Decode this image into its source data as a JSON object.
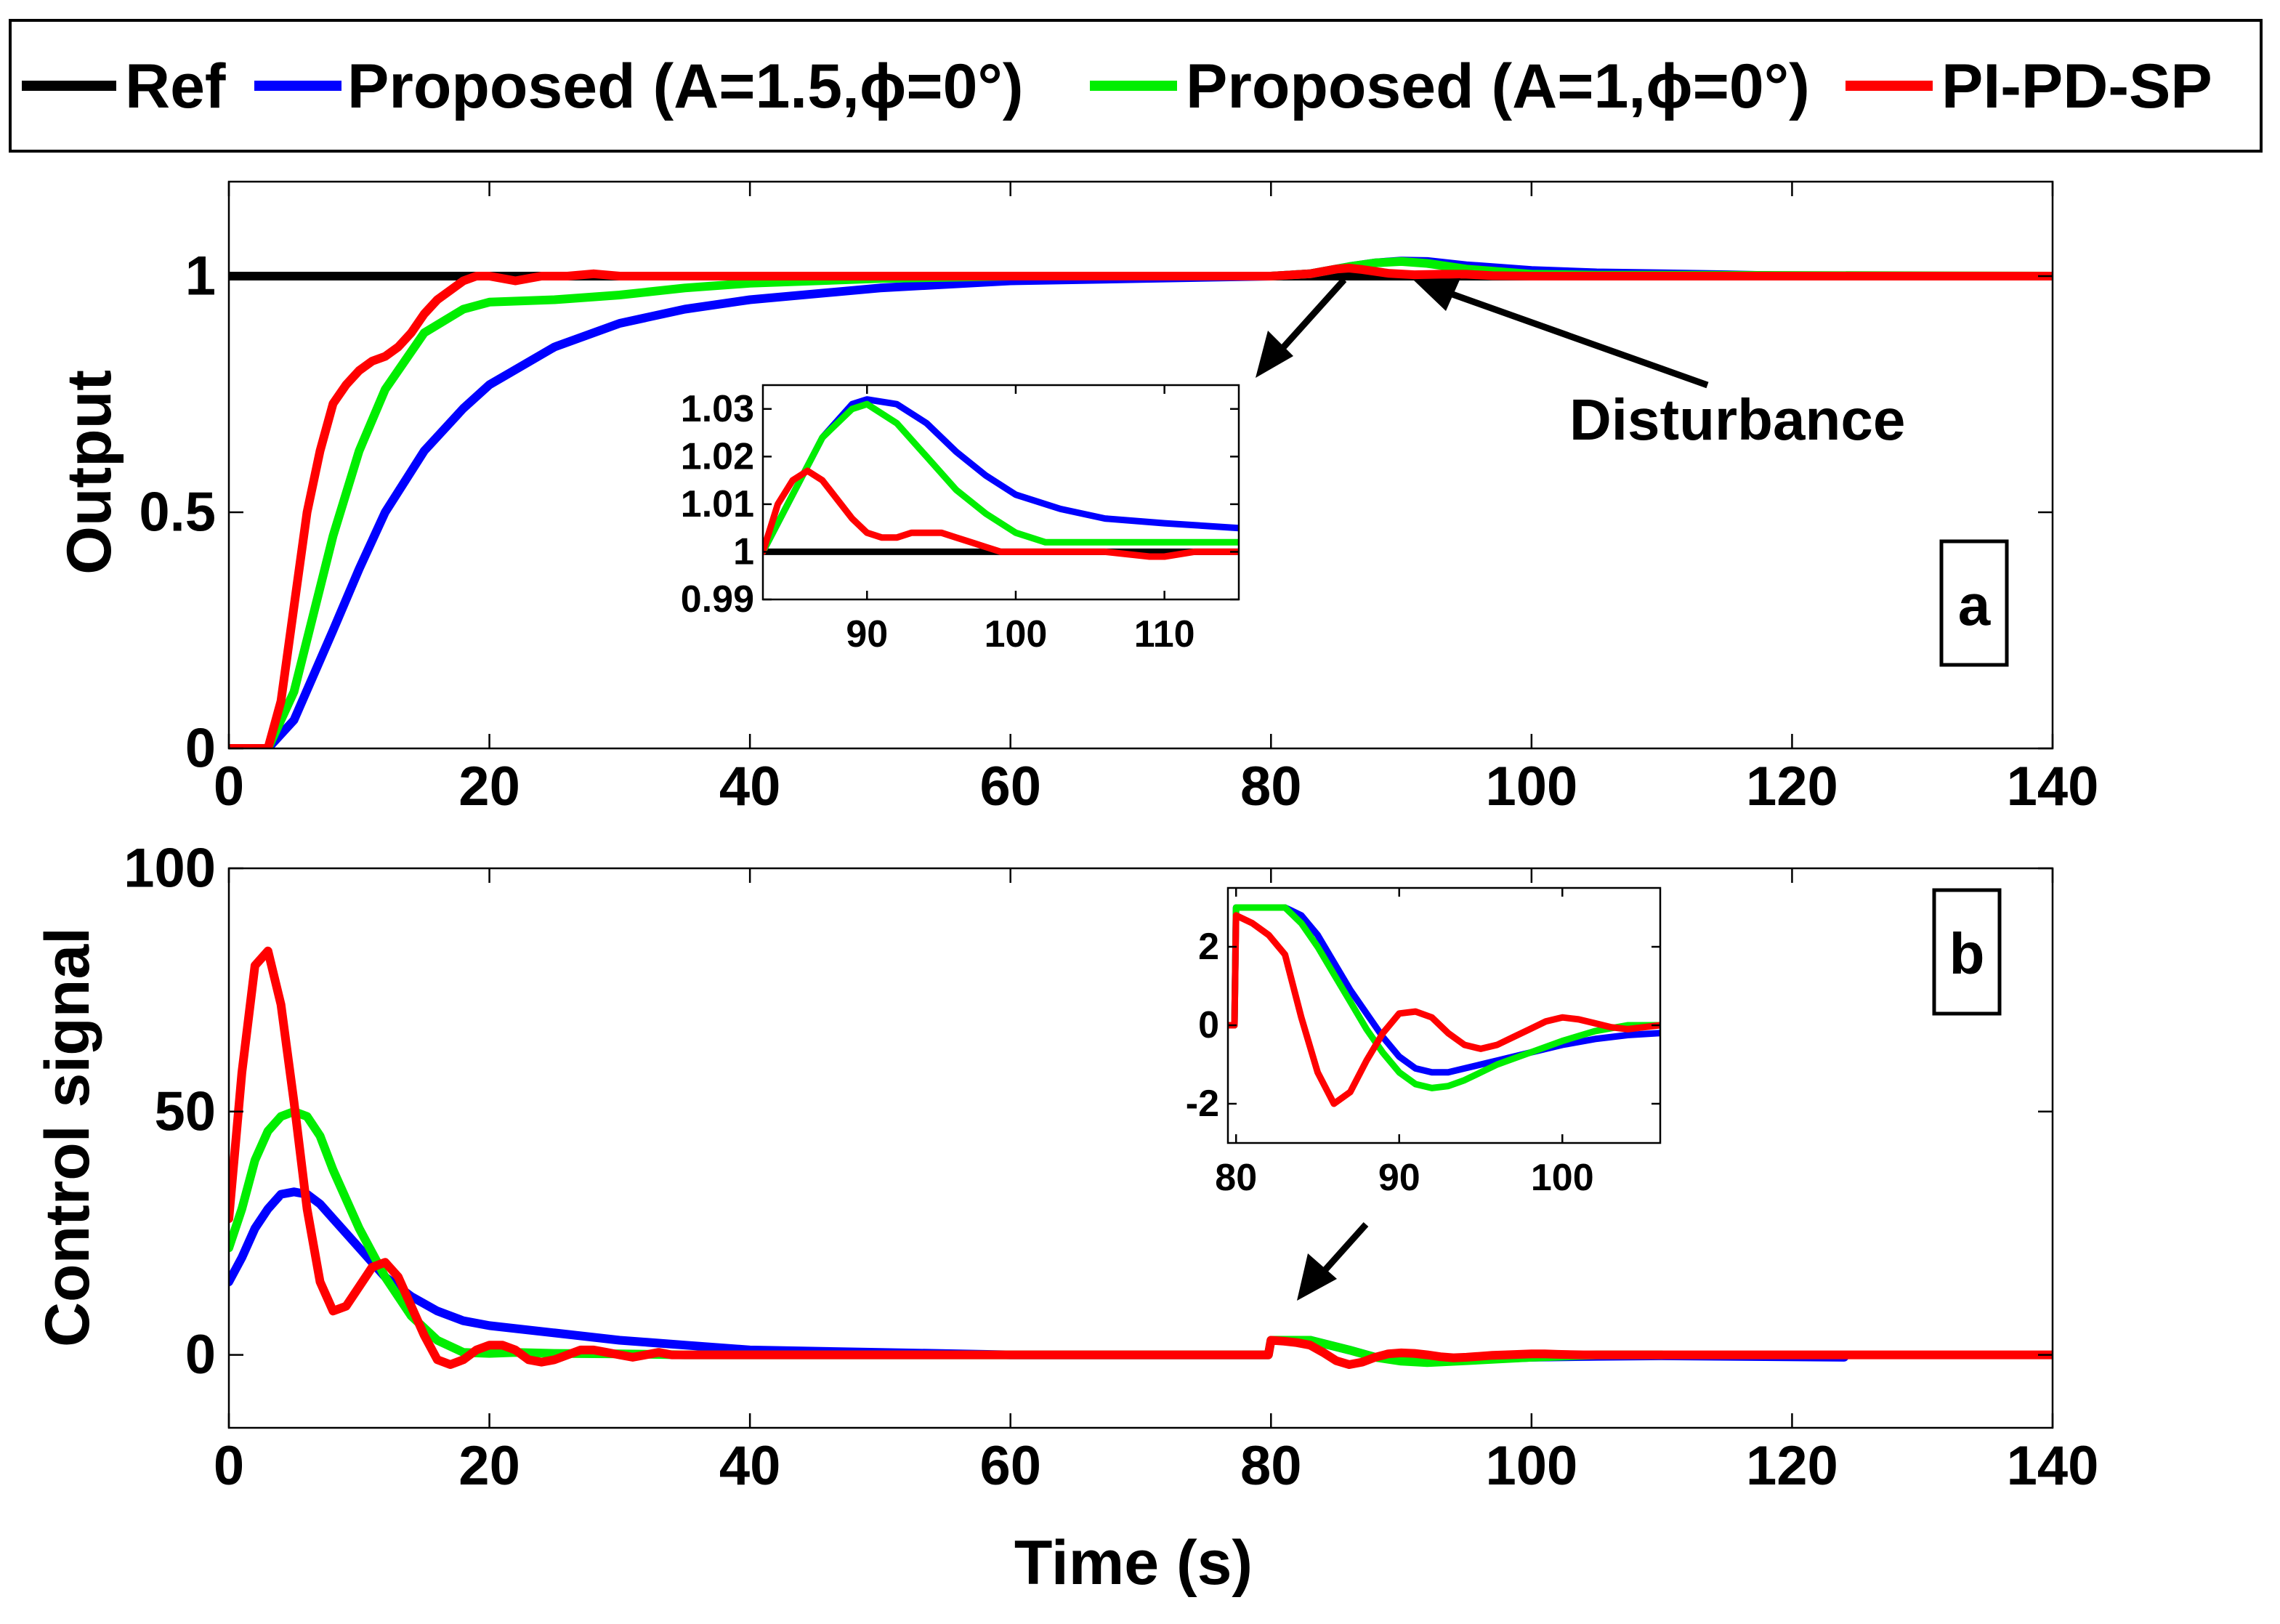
{
  "colors": {
    "ref": "#000000",
    "proposed_a15": "#0000ff",
    "proposed_a1": "#00ee00",
    "pipdsp": "#ff0000"
  },
  "legend": [
    {
      "key": "ref",
      "label": "Ref"
    },
    {
      "key": "proposed_a15",
      "label": "Proposed (A=1.5,ϕ=0°)"
    },
    {
      "key": "proposed_a1",
      "label": "Proposed (A=1,ϕ=0°)"
    },
    {
      "key": "pipdsp",
      "label": "PI-PD-SP"
    }
  ],
  "annotations": {
    "disturbance": "Disturbance",
    "panel_a": "a",
    "panel_b": "b"
  },
  "chart_data": [
    {
      "id": "output",
      "type": "line",
      "ylabel": "Output",
      "xlabel": "",
      "xlim": [
        0,
        140
      ],
      "ylim": [
        0,
        1.2
      ],
      "xticks": [
        0,
        20,
        40,
        60,
        80,
        100,
        120,
        140
      ],
      "yticks": [
        0,
        0.5,
        1
      ],
      "ytick_labels": [
        "0",
        "0.5",
        "1"
      ],
      "series": [
        {
          "key": "ref",
          "name": "Ref",
          "x": [
            0,
            140
          ],
          "y": [
            1,
            1
          ]
        },
        {
          "key": "proposed_a15",
          "name": "Proposed (A=1.5,ϕ=0°)",
          "x": [
            0,
            3,
            5,
            8,
            10,
            12,
            15,
            18,
            20,
            25,
            30,
            35,
            40,
            50,
            60,
            70,
            80,
            83,
            86,
            88,
            90,
            92,
            95,
            100,
            105,
            110,
            115,
            120,
            130,
            140
          ],
          "y": [
            0,
            0,
            0.06,
            0.25,
            0.38,
            0.5,
            0.63,
            0.72,
            0.77,
            0.85,
            0.9,
            0.93,
            0.95,
            0.975,
            0.99,
            0.995,
            1,
            1.005,
            1.02,
            1.028,
            1.032,
            1.031,
            1.022,
            1.012,
            1.007,
            1.005,
            1.003,
            1,
            1,
            1
          ]
        },
        {
          "key": "proposed_a1",
          "name": "Proposed (A=1,ϕ=0°)",
          "x": [
            0,
            3,
            5,
            8,
            10,
            12,
            15,
            18,
            20,
            25,
            30,
            35,
            40,
            50,
            60,
            80,
            83,
            86,
            88,
            90,
            92,
            95,
            100,
            105,
            110,
            140
          ],
          "y": [
            0,
            0,
            0.12,
            0.45,
            0.63,
            0.76,
            0.88,
            0.93,
            0.945,
            0.95,
            0.96,
            0.975,
            0.985,
            0.995,
            1,
            1,
            1.005,
            1.02,
            1.028,
            1.031,
            1.027,
            1.015,
            1.004,
            1.002,
            1.002,
            1
          ]
        },
        {
          "key": "pipdsp",
          "name": "PI-PD-SP",
          "x": [
            0,
            3,
            4,
            5,
            6,
            7,
            8,
            9,
            10,
            11,
            12,
            13,
            14,
            15,
            16,
            17,
            18,
            19,
            20,
            22,
            24,
            26,
            28,
            30,
            40,
            60,
            80,
            83,
            85,
            86,
            87,
            89,
            91,
            93,
            95,
            97,
            100,
            105,
            110,
            140
          ],
          "y": [
            0,
            0,
            0.1,
            0.3,
            0.5,
            0.63,
            0.73,
            0.77,
            0.8,
            0.82,
            0.83,
            0.85,
            0.88,
            0.92,
            0.95,
            0.97,
            0.99,
            1.0,
            1.0,
            0.99,
            1.0,
            1.0,
            1.005,
            1.0,
            1.0,
            1,
            1,
            1.005,
            1.015,
            1.017,
            1.014,
            1.006,
            1.003,
            1.004,
            1.004,
            1.001,
            1,
            1.0,
            1,
            1
          ]
        }
      ]
    },
    {
      "id": "output_inset",
      "type": "line",
      "xlim": [
        83,
        115
      ],
      "ylim": [
        0.99,
        1.035
      ],
      "xticks": [
        90,
        100,
        110
      ],
      "yticks": [
        0.99,
        1,
        1.01,
        1.02,
        1.03
      ],
      "ytick_labels": [
        "0.99",
        "1",
        "1.01",
        "1.02",
        "1.03"
      ],
      "series": [
        {
          "key": "ref",
          "name": "Ref",
          "x": [
            83,
            115
          ],
          "y": [
            1,
            1
          ]
        },
        {
          "key": "proposed_a15",
          "name": "Proposed (A=1.5,ϕ=0°)",
          "x": [
            83,
            85,
            87,
            89,
            90,
            92,
            94,
            96,
            98,
            100,
            103,
            106,
            110,
            115
          ],
          "y": [
            1,
            1.012,
            1.024,
            1.031,
            1.032,
            1.031,
            1.027,
            1.021,
            1.016,
            1.012,
            1.009,
            1.007,
            1.006,
            1.005
          ]
        },
        {
          "key": "proposed_a1",
          "name": "Proposed (A=1,ϕ=0°)",
          "x": [
            83,
            85,
            87,
            89,
            90,
            92,
            94,
            96,
            98,
            100,
            102,
            104,
            106,
            110,
            115
          ],
          "y": [
            1,
            1.012,
            1.024,
            1.03,
            1.031,
            1.027,
            1.02,
            1.013,
            1.008,
            1.004,
            1.002,
            1.002,
            1.002,
            1.002,
            1.002
          ]
        },
        {
          "key": "pipdsp",
          "name": "PI-PD-SP",
          "x": [
            83,
            84,
            85,
            86,
            87,
            88,
            89,
            90,
            91,
            92,
            93,
            94,
            95,
            96,
            97,
            98,
            99,
            100,
            103,
            106,
            109,
            110,
            112,
            115
          ],
          "y": [
            1,
            1.01,
            1.015,
            1.017,
            1.015,
            1.011,
            1.007,
            1.004,
            1.003,
            1.003,
            1.004,
            1.004,
            1.004,
            1.003,
            1.002,
            1.001,
            1.0,
            1.0,
            1.0,
            1.0,
            0.999,
            0.999,
            1.0,
            1.0
          ]
        }
      ]
    },
    {
      "id": "control",
      "type": "line",
      "ylabel": "Control signal",
      "xlabel": "Time (s)",
      "xlim": [
        0,
        140
      ],
      "ylim": [
        -15,
        100
      ],
      "xticks": [
        0,
        20,
        40,
        60,
        80,
        100,
        120,
        140
      ],
      "yticks": [
        0,
        50,
        100
      ],
      "ytick_labels": [
        "0",
        "50",
        "100"
      ],
      "series": [
        {
          "key": "proposed_a15",
          "name": "Proposed (A=1.5,ϕ=0°)",
          "x": [
            0,
            1,
            2,
            3,
            4,
            5,
            6,
            7,
            8,
            10,
            12,
            14,
            16,
            18,
            20,
            25,
            30,
            35,
            40,
            50,
            60,
            79.8,
            80,
            83,
            86,
            88,
            90,
            92,
            95,
            100,
            105,
            110,
            124
          ],
          "y": [
            15,
            20,
            26,
            30,
            33,
            33.5,
            33,
            31,
            28,
            22,
            16,
            12,
            9,
            7,
            6,
            4.5,
            3,
            2,
            1,
            0.5,
            0,
            0,
            3,
            3,
            1,
            -0.5,
            -1,
            -1.2,
            -1,
            -0.5,
            -0.3,
            -0.2,
            -0.5
          ]
        },
        {
          "key": "proposed_a1",
          "name": "Proposed (A=1,ϕ=0°)",
          "x": [
            0,
            1,
            2,
            3,
            4,
            5,
            6,
            7,
            8,
            10,
            12,
            14,
            16,
            18,
            20,
            22,
            25,
            30,
            35,
            40,
            60,
            79.8,
            80,
            83,
            86,
            88,
            90,
            92,
            95,
            100,
            105,
            110
          ],
          "y": [
            22,
            30,
            40,
            46,
            49,
            50,
            49,
            45,
            38,
            26,
            16,
            8,
            3,
            0.5,
            0.3,
            0.5,
            0.3,
            0.2,
            0,
            0,
            0,
            0,
            3,
            3,
            1,
            -0.5,
            -1.3,
            -1.6,
            -1.2,
            -0.5,
            0,
            0
          ]
        },
        {
          "key": "pipdsp",
          "name": "PI-PD-SP",
          "x": [
            0,
            1,
            2,
            3,
            4,
            5,
            6,
            7,
            8,
            9,
            10,
            11,
            12,
            13,
            14,
            15,
            16,
            17,
            18,
            19,
            20,
            21,
            22,
            23,
            24,
            25,
            26,
            27,
            28,
            29,
            30,
            31,
            32,
            33,
            34,
            35,
            40,
            60,
            79.8,
            80,
            81,
            82,
            83,
            84,
            85,
            86,
            87,
            88,
            89,
            90,
            91,
            92,
            93,
            94,
            95,
            96,
            97,
            98,
            100,
            101,
            102,
            104,
            106,
            140
          ],
          "y": [
            28,
            58,
            80,
            83,
            72,
            52,
            30,
            15,
            9,
            10,
            14,
            18,
            19,
            16,
            10,
            4,
            -1,
            -2,
            -1,
            1,
            2,
            2,
            1,
            -1,
            -1.5,
            -1,
            0,
            1,
            1,
            0.5,
            0,
            -0.5,
            0,
            0.5,
            0,
            0,
            0,
            0,
            0,
            3,
            2.8,
            2.5,
            2,
            0.5,
            -1.2,
            -2,
            -1.5,
            -0.5,
            0.2,
            0.4,
            0.3,
            0,
            -0.4,
            -0.6,
            -0.5,
            -0.3,
            -0.1,
            0,
            0.2,
            0.2,
            0.1,
            0,
            0,
            0
          ]
        }
      ]
    },
    {
      "id": "control_inset",
      "type": "line",
      "xlim": [
        79.5,
        106
      ],
      "ylim": [
        -3,
        3.5
      ],
      "xticks": [
        80,
        90,
        100
      ],
      "yticks": [
        -2,
        0,
        2
      ],
      "ytick_labels": [
        "-2",
        "0",
        "2"
      ],
      "series": [
        {
          "key": "proposed_a15",
          "name": "Proposed (A=1.5,ϕ=0°)",
          "x": [
            79.5,
            79.9,
            80,
            83,
            84,
            85,
            86,
            87,
            88,
            89,
            90,
            91,
            92,
            93,
            94,
            95,
            96,
            98,
            100,
            102,
            104,
            106
          ],
          "y": [
            0,
            0,
            3,
            3,
            2.8,
            2.3,
            1.6,
            0.9,
            0.3,
            -0.3,
            -0.8,
            -1.1,
            -1.2,
            -1.2,
            -1.1,
            -1,
            -0.9,
            -0.7,
            -0.5,
            -0.35,
            -0.25,
            -0.2
          ]
        },
        {
          "key": "proposed_a1",
          "name": "Proposed (A=1,ϕ=0°)",
          "x": [
            79.5,
            79.9,
            80,
            83,
            84,
            85,
            86,
            87,
            88,
            89,
            90,
            91,
            92,
            93,
            94,
            95,
            96,
            98,
            100,
            102,
            104,
            106
          ],
          "y": [
            0,
            0,
            3,
            3,
            2.6,
            2.0,
            1.3,
            0.6,
            -0.1,
            -0.7,
            -1.2,
            -1.5,
            -1.6,
            -1.55,
            -1.4,
            -1.2,
            -1.0,
            -0.7,
            -0.4,
            -0.15,
            0,
            0
          ]
        },
        {
          "key": "pipdsp",
          "name": "PI-PD-SP",
          "x": [
            79.5,
            79.9,
            80,
            81,
            82,
            83,
            83.5,
            84,
            85,
            86,
            87,
            88,
            89,
            90,
            91,
            92,
            93,
            94,
            95,
            96,
            97,
            98,
            99,
            100,
            101,
            102,
            103,
            104,
            105,
            106
          ],
          "y": [
            0,
            0,
            2.8,
            2.6,
            2.3,
            1.8,
            1.0,
            0.2,
            -1.2,
            -2.0,
            -1.7,
            -0.9,
            -0.2,
            0.3,
            0.35,
            0.2,
            -0.2,
            -0.5,
            -0.6,
            -0.5,
            -0.3,
            -0.1,
            0.1,
            0.2,
            0.15,
            0.05,
            -0.05,
            -0.1,
            -0.05,
            0
          ]
        }
      ]
    }
  ]
}
